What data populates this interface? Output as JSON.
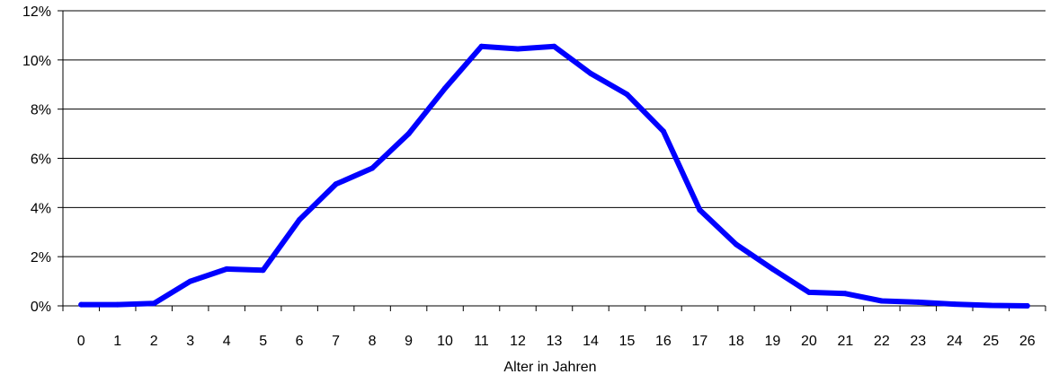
{
  "chart_data": {
    "type": "line",
    "xlabel": "Alter in Jahren",
    "ylabel": "",
    "ylim": [
      0,
      12
    ],
    "y_ticks": [
      "0%",
      "2%",
      "4%",
      "6%",
      "8%",
      "10%",
      "12%"
    ],
    "grid": "horizontal",
    "legend": "none",
    "categories": [
      "0",
      "1",
      "2",
      "3",
      "4",
      "5",
      "6",
      "7",
      "8",
      "9",
      "10",
      "11",
      "12",
      "13",
      "14",
      "15",
      "16",
      "17",
      "18",
      "19",
      "20",
      "21",
      "22",
      "23",
      "24",
      "25",
      "26"
    ],
    "series": [
      {
        "color": "#0000ff",
        "values": [
          0.05,
          0.05,
          0.1,
          1.0,
          1.5,
          1.45,
          3.5,
          4.95,
          5.6,
          7.0,
          8.85,
          10.55,
          10.45,
          10.55,
          9.45,
          8.6,
          7.1,
          3.9,
          2.5,
          1.5,
          0.55,
          0.5,
          0.2,
          0.15,
          0.07,
          0.02,
          0.0
        ]
      }
    ]
  }
}
